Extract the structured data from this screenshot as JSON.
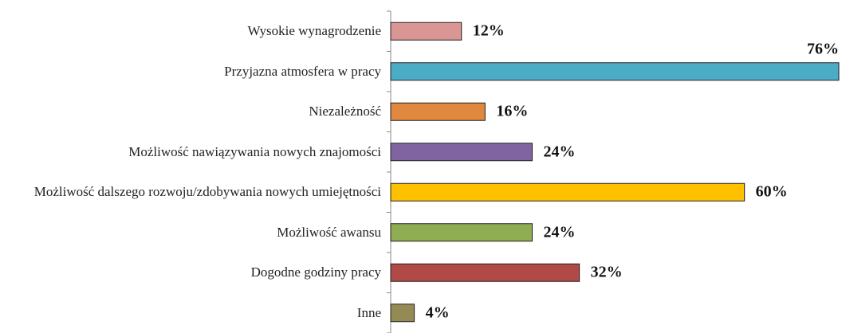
{
  "chart_data": {
    "type": "bar",
    "orientation": "horizontal",
    "categories": [
      "Wysokie wynagrodzenie",
      "Przyjazna atmosfera w pracy",
      "Niezależność",
      "Możliwość nawiązywania nowych znajomości",
      "Możliwość dalszego rozwoju/zdobywania nowych umiejętności",
      "Możliwość awansu",
      "Dogodne godziny pracy",
      "Inne"
    ],
    "values": [
      12,
      76,
      16,
      24,
      60,
      24,
      32,
      4
    ],
    "value_labels": [
      "12%",
      "76%",
      "16%",
      "24%",
      "60%",
      "24%",
      "32%",
      "4%"
    ],
    "colors": [
      "#d99694",
      "#4bacc6",
      "#e0883d",
      "#8064a2",
      "#ffc000",
      "#8fad52",
      "#b04a47",
      "#948a54"
    ]
  }
}
